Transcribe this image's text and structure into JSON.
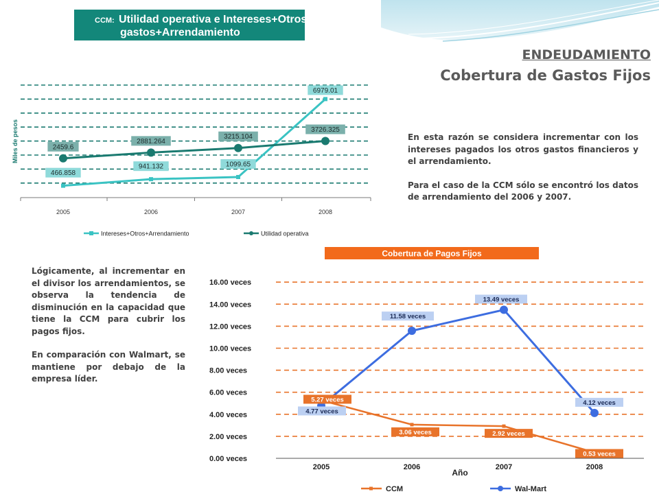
{
  "heading": {
    "section": "ENDEUDAMIENTO",
    "subtitle": "Cobertura de Gastos Fijos"
  },
  "text_right": [
    "En esta razón se considera incrementar con los intereses pagados los otros gastos financieros y el arrendamiento.",
    "Para el caso de la CCM sólo se encontró los datos de arrendamiento del 2006 y 2007."
  ],
  "text_left": [
    "Lógicamente, al incrementar en el divisor los arrendamientos, se observa la tendencia de disminución en la capacidad que tiene la CCM para cubrir los pagos fijos.",
    "En comparación con Walmart, se mantiene por debajo de la empresa líder."
  ],
  "colors": {
    "teal_dark": "#1a7a70",
    "teal_light": "#3ac3c3",
    "teal_banner": "#13877a",
    "orange": "#e8732a",
    "blue": "#3d6de0",
    "label_blue_bg": "#bcd0f2"
  },
  "chart_data": [
    {
      "type": "line",
      "title_prefix": "CCM:",
      "title_lines": [
        "Utilidad operativa e Intereses+Otros",
        "gastos+Arrendamiento"
      ],
      "ylabel": "Miles de pesos",
      "categories": [
        "2005",
        "2006",
        "2007",
        "2008"
      ],
      "series": [
        {
          "name": "Intereses+Otros+Arrendamiento",
          "values": [
            466.858,
            941.132,
            1099.65,
            6979.01
          ],
          "labels": [
            "466.858",
            "941.132",
            "1099.65",
            "6979.01"
          ],
          "color": "#3ac3c3"
        },
        {
          "name": "Utilidad operativa",
          "values": [
            2459.6,
            2881.264,
            3215.104,
            3726.325
          ],
          "labels": [
            "2459.6",
            "2881.264",
            "3215.104",
            "3726.325"
          ],
          "color": "#1a7a70"
        }
      ],
      "ylim": [
        0,
        8000
      ],
      "grid": true,
      "legend": "bottom"
    },
    {
      "type": "line",
      "title": "Cobertura de Pagos Fijos",
      "xlabel": "Año",
      "categories": [
        "2005",
        "2006",
        "2007",
        "2008"
      ],
      "yticks": [
        "0.00 veces",
        "2.00 veces",
        "4.00 veces",
        "6.00 veces",
        "8.00 veces",
        "10.00 veces",
        "12.00 veces",
        "14.00 veces",
        "16.00 veces"
      ],
      "ylim": [
        0,
        16
      ],
      "series": [
        {
          "name": "CCM",
          "values": [
            5.27,
            3.06,
            2.92,
            0.53
          ],
          "labels": [
            "5.27 veces",
            "3.06 veces",
            "2.92 veces",
            "0.53 veces"
          ],
          "color": "#e8732a"
        },
        {
          "name": "Wal-Mart",
          "values": [
            4.77,
            11.58,
            13.49,
            4.12
          ],
          "labels": [
            "4.77 veces",
            "11.58 veces",
            "13.49 veces",
            "4.12 veces"
          ],
          "color": "#3d6de0"
        }
      ],
      "grid": true,
      "legend": "bottom"
    }
  ]
}
